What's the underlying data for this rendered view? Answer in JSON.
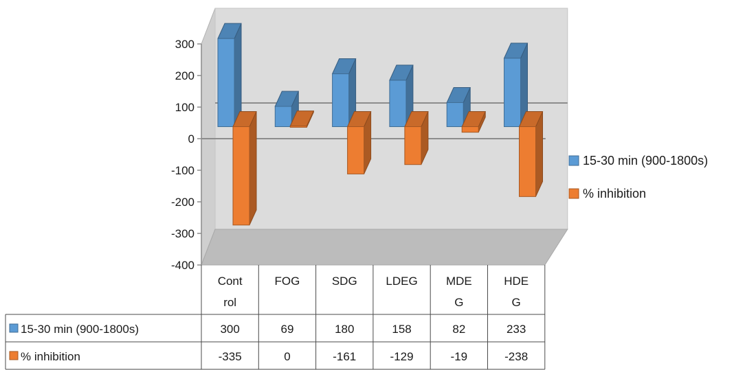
{
  "chart_data": {
    "type": "bar",
    "style": "3d-column",
    "categories": [
      "Control",
      "FOG",
      "SDG",
      "LDEG",
      "MDEG",
      "HDEG"
    ],
    "category_label_lines": [
      [
        "Cont",
        "rol"
      ],
      [
        "FOG"
      ],
      [
        "SDG"
      ],
      [
        "LDEG"
      ],
      [
        "MDE",
        "G"
      ],
      [
        "HDE",
        "G"
      ]
    ],
    "series": [
      {
        "name": "15-30 min (900-1800s)",
        "values": [
          300,
          69,
          180,
          158,
          82,
          233
        ],
        "color": "#5b9bd5"
      },
      {
        "name": "% inhibition",
        "values": [
          -335,
          0,
          -161,
          -129,
          -19,
          -238
        ],
        "color": "#ed7d31"
      }
    ],
    "yticks": [
      300,
      200,
      100,
      0,
      -100,
      -200,
      -300,
      -400
    ],
    "ylim": [
      -400,
      300
    ],
    "grid": false,
    "legend_position": "right",
    "data_table": true
  }
}
